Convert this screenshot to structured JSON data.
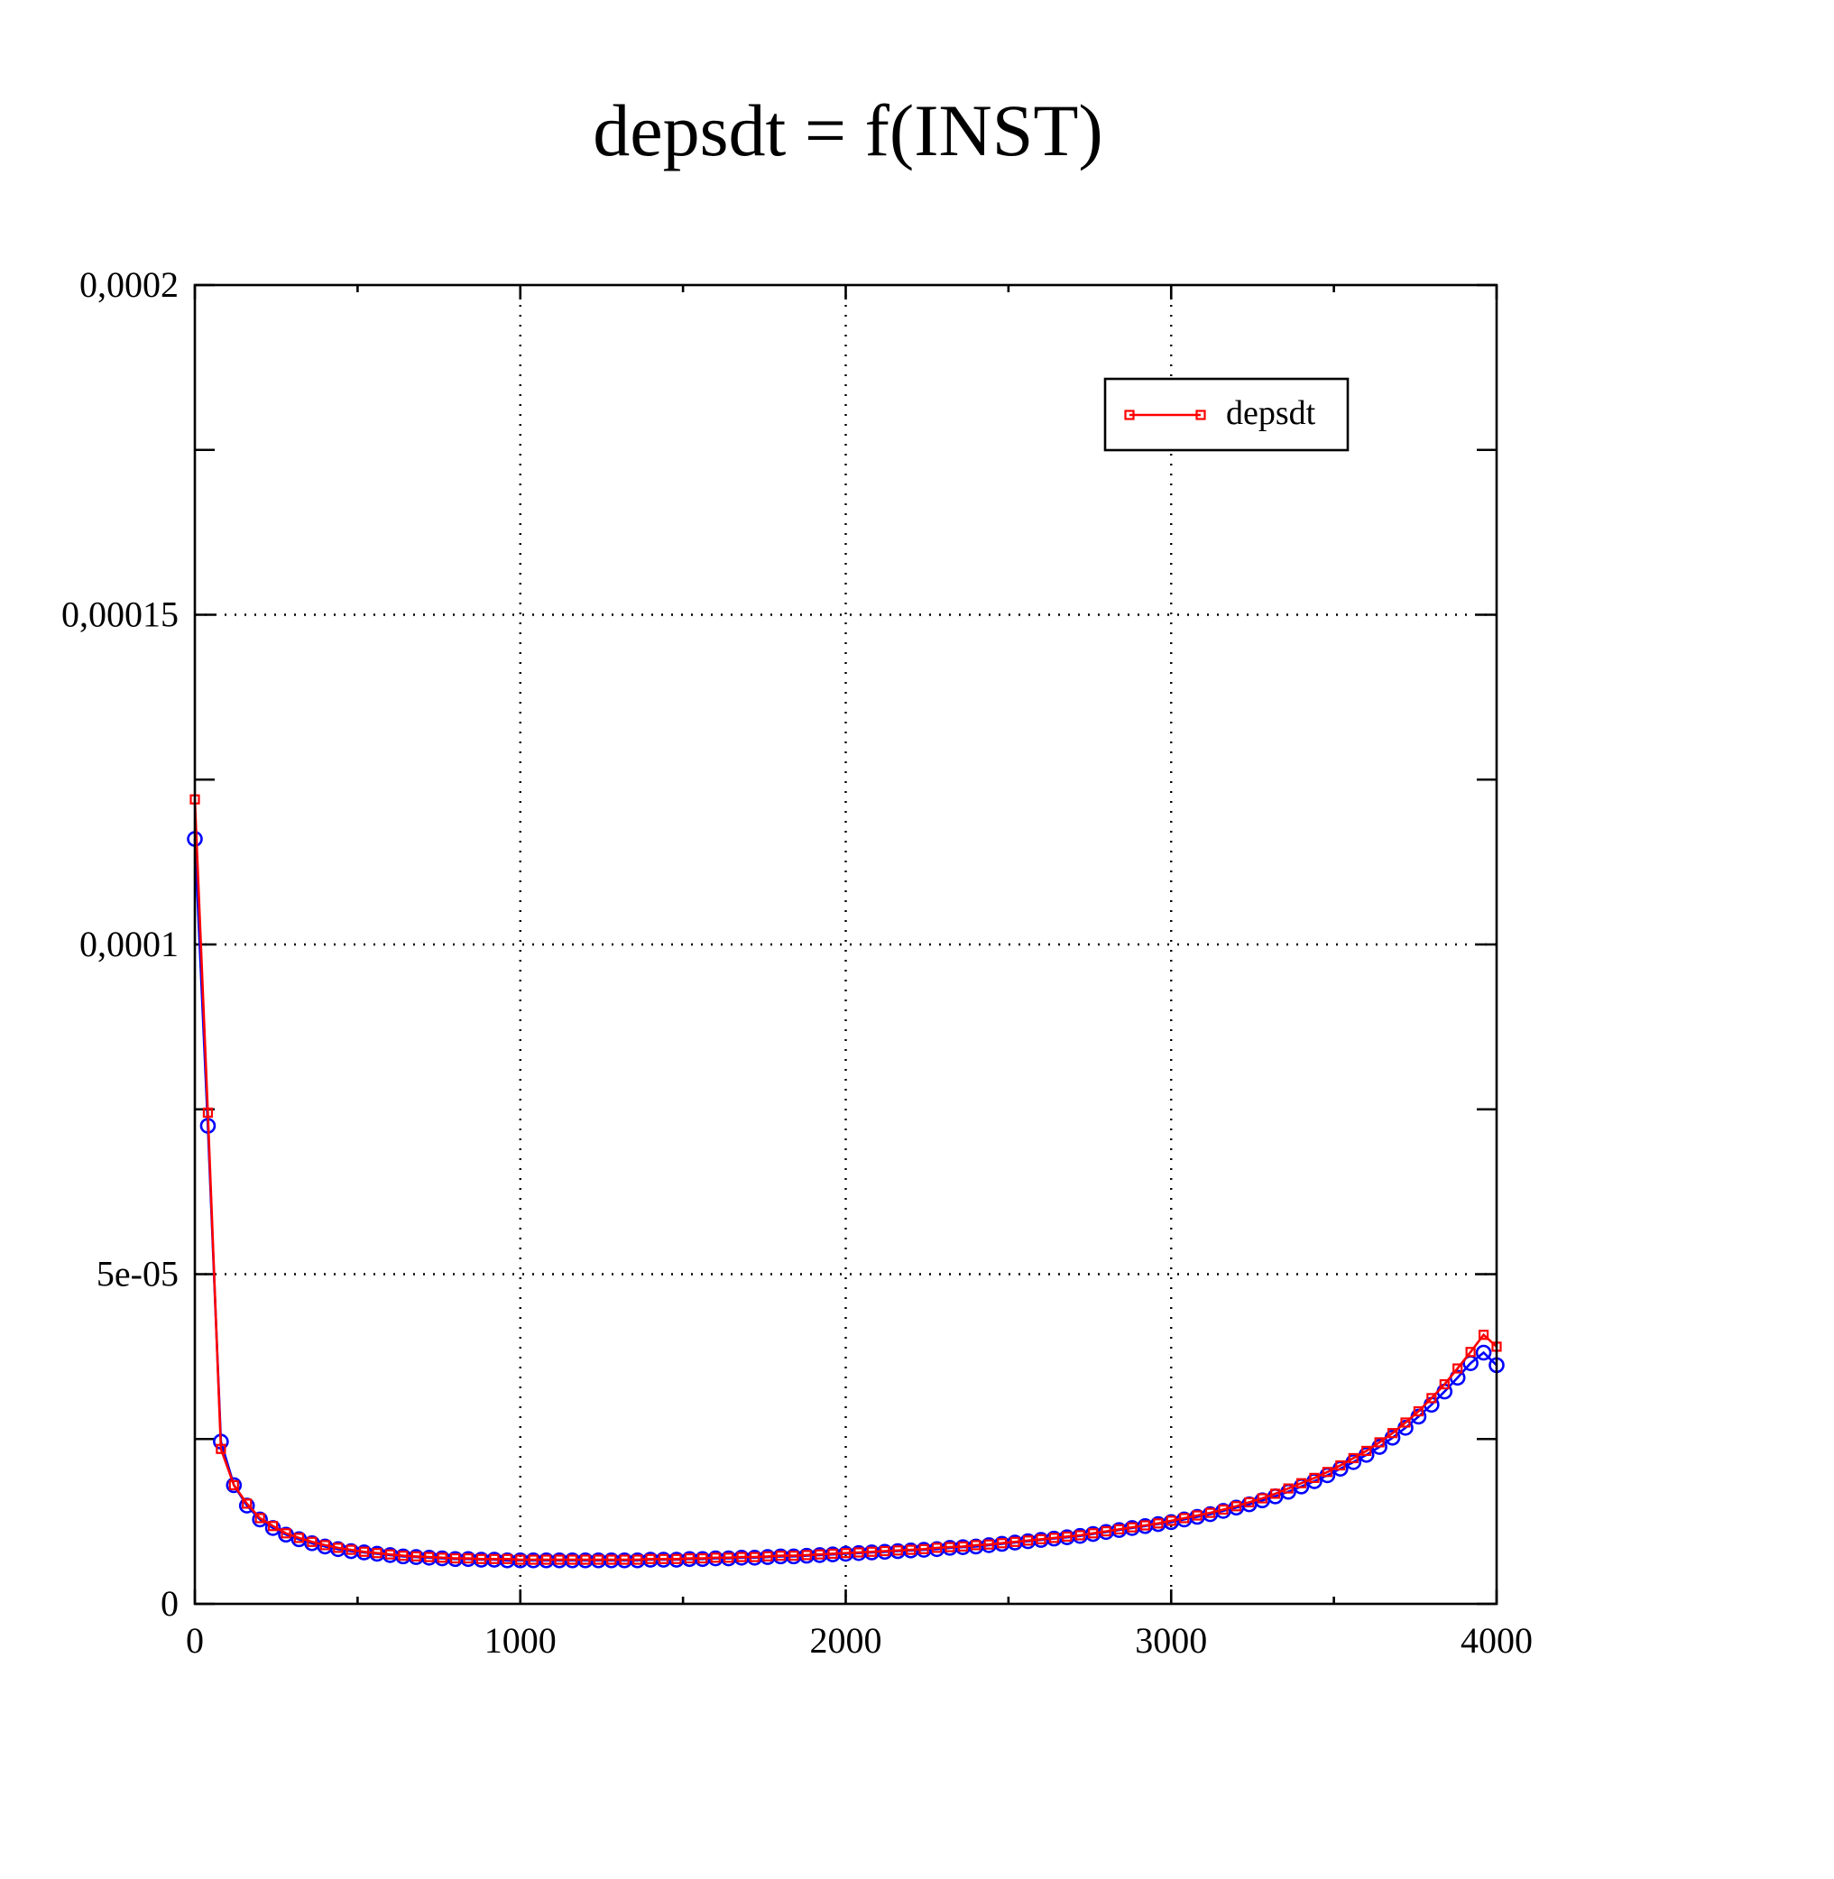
{
  "chart_data": {
    "type": "line",
    "title": "depsdt = f(INST)",
    "xlabel": "",
    "ylabel": "",
    "xlim": [
      0,
      4000
    ],
    "ylim": [
      0,
      0.0002
    ],
    "x_ticks": [
      0,
      1000,
      2000,
      3000,
      4000
    ],
    "x_tick_labels": [
      "0",
      "1000",
      "2000",
      "3000",
      "4000"
    ],
    "y_ticks": [
      0,
      5e-05,
      0.0001,
      0.00015,
      0.0002
    ],
    "y_tick_labels": [
      "0",
      "5e-05",
      "0,0001",
      "0,00015",
      "0,0002"
    ],
    "grid": true,
    "legend": {
      "position": "top-right",
      "entries": [
        "depsdt"
      ]
    },
    "series": [
      {
        "name": "depsdt",
        "color": "#ff0000",
        "marker": "square",
        "x": [
          0,
          40,
          80,
          120,
          160,
          200,
          240,
          280,
          320,
          360,
          400,
          440,
          480,
          520,
          560,
          600,
          640,
          680,
          720,
          760,
          800,
          840,
          880,
          920,
          960,
          1000,
          1040,
          1080,
          1120,
          1160,
          1200,
          1240,
          1280,
          1320,
          1360,
          1400,
          1440,
          1480,
          1520,
          1560,
          1600,
          1640,
          1680,
          1720,
          1760,
          1800,
          1840,
          1880,
          1920,
          1960,
          2000,
          2040,
          2080,
          2120,
          2160,
          2200,
          2240,
          2280,
          2320,
          2360,
          2400,
          2440,
          2480,
          2520,
          2560,
          2600,
          2640,
          2680,
          2720,
          2760,
          2800,
          2840,
          2880,
          2920,
          2960,
          3000,
          3040,
          3080,
          3120,
          3160,
          3200,
          3240,
          3280,
          3320,
          3360,
          3400,
          3440,
          3480,
          3520,
          3560,
          3600,
          3640,
          3680,
          3720,
          3760,
          3800,
          3840,
          3880,
          3920,
          3960,
          4000
        ],
        "y": [
          0.000122,
          7.45e-05,
          2.35e-05,
          1.8e-05,
          1.52e-05,
          1.3e-05,
          1.18e-05,
          1.07e-05,
          1e-05,
          9.4e-06,
          8.9e-06,
          8.5e-06,
          8.2e-06,
          7.9e-06,
          7.7e-06,
          7.5e-06,
          7.3e-06,
          7.2e-06,
          7.1e-06,
          7e-06,
          6.9e-06,
          6.9e-06,
          6.8e-06,
          6.8e-06,
          6.8e-06,
          6.7e-06,
          6.7e-06,
          6.7e-06,
          6.7e-06,
          6.7e-06,
          6.7e-06,
          6.7e-06,
          6.7e-06,
          6.7e-06,
          6.7e-06,
          6.8e-06,
          6.8e-06,
          6.8e-06,
          6.9e-06,
          6.9e-06,
          7e-06,
          7e-06,
          7.1e-06,
          7.1e-06,
          7.2e-06,
          7.3e-06,
          7.3e-06,
          7.4e-06,
          7.5e-06,
          7.6e-06,
          7.7e-06,
          7.8e-06,
          7.9e-06,
          8e-06,
          8.1e-06,
          8.2e-06,
          8.3e-06,
          8.5e-06,
          8.6e-06,
          8.7e-06,
          8.9e-06,
          9e-06,
          9.2e-06,
          9.4e-06,
          9.6e-06,
          9.8e-06,
          1e-05,
          1.02e-05,
          1.04e-05,
          1.07e-05,
          1.1e-05,
          1.13e-05,
          1.16e-05,
          1.19e-05,
          1.22e-05,
          1.26e-05,
          1.3e-05,
          1.34e-05,
          1.38e-05,
          1.43e-05,
          1.48e-05,
          1.54e-05,
          1.6e-05,
          1.67e-05,
          1.75e-05,
          1.83e-05,
          1.91e-05,
          2e-05,
          2.1e-05,
          2.21e-05,
          2.32e-05,
          2.45e-05,
          2.59e-05,
          2.75e-05,
          2.92e-05,
          3.12e-05,
          3.33e-05,
          3.57e-05,
          3.82e-05,
          4.08e-05,
          3.9e-05
        ]
      },
      {
        "name": "",
        "color": "#0000ff",
        "marker": "circle",
        "x": [
          0,
          40,
          80,
          120,
          160,
          200,
          240,
          280,
          320,
          360,
          400,
          440,
          480,
          520,
          560,
          600,
          640,
          680,
          720,
          760,
          800,
          840,
          880,
          920,
          960,
          1000,
          1040,
          1080,
          1120,
          1160,
          1200,
          1240,
          1280,
          1320,
          1360,
          1400,
          1440,
          1480,
          1520,
          1560,
          1600,
          1640,
          1680,
          1720,
          1760,
          1800,
          1840,
          1880,
          1920,
          1960,
          2000,
          2040,
          2080,
          2120,
          2160,
          2200,
          2240,
          2280,
          2320,
          2360,
          2400,
          2440,
          2480,
          2520,
          2560,
          2600,
          2640,
          2680,
          2720,
          2760,
          2800,
          2840,
          2880,
          2920,
          2960,
          3000,
          3040,
          3080,
          3120,
          3160,
          3200,
          3240,
          3280,
          3320,
          3360,
          3400,
          3440,
          3480,
          3520,
          3560,
          3600,
          3640,
          3680,
          3720,
          3760,
          3800,
          3840,
          3880,
          3920,
          3960,
          4000
        ],
        "y": [
          0.000116,
          7.25e-05,
          2.46e-05,
          1.8e-05,
          1.49e-05,
          1.28e-05,
          1.15e-05,
          1.05e-05,
          9.8e-06,
          9.2e-06,
          8.7e-06,
          8.3e-06,
          8e-06,
          7.8e-06,
          7.6e-06,
          7.4e-06,
          7.2e-06,
          7.1e-06,
          7e-06,
          6.9e-06,
          6.8e-06,
          6.8e-06,
          6.7e-06,
          6.7e-06,
          6.6e-06,
          6.6e-06,
          6.6e-06,
          6.6e-06,
          6.6e-06,
          6.6e-06,
          6.6e-06,
          6.6e-06,
          6.6e-06,
          6.6e-06,
          6.6e-06,
          6.7e-06,
          6.7e-06,
          6.7e-06,
          6.8e-06,
          6.8e-06,
          6.9e-06,
          6.9e-06,
          7e-06,
          7e-06,
          7.1e-06,
          7.2e-06,
          7.2e-06,
          7.3e-06,
          7.4e-06,
          7.5e-06,
          7.6e-06,
          7.7e-06,
          7.8e-06,
          7.9e-06,
          8e-06,
          8.1e-06,
          8.2e-06,
          8.3e-06,
          8.5e-06,
          8.6e-06,
          8.7e-06,
          8.9e-06,
          9.1e-06,
          9.3e-06,
          9.5e-06,
          9.7e-06,
          9.9e-06,
          1.01e-05,
          1.03e-05,
          1.06e-05,
          1.09e-05,
          1.12e-05,
          1.15e-05,
          1.18e-05,
          1.21e-05,
          1.24e-05,
          1.28e-05,
          1.32e-05,
          1.36e-05,
          1.41e-05,
          1.46e-05,
          1.51e-05,
          1.57e-05,
          1.63e-05,
          1.7e-05,
          1.78e-05,
          1.86e-05,
          1.95e-05,
          2.05e-05,
          2.15e-05,
          2.26e-05,
          2.38e-05,
          2.52e-05,
          2.67e-05,
          2.84e-05,
          3.02e-05,
          3.22e-05,
          3.43e-05,
          3.65e-05,
          3.81e-05,
          3.62e-05
        ]
      }
    ]
  }
}
